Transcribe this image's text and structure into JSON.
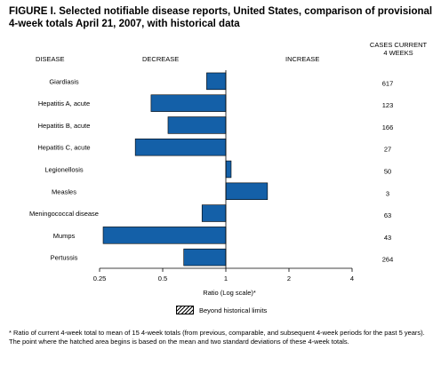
{
  "title": "FIGURE I. Selected notifiable disease reports, United States, comparison of provisional 4-week totals April 21, 2007, with historical data",
  "headers": {
    "disease": "DISEASE",
    "decrease": "DECREASE",
    "increase": "INCREASE",
    "cases_line1": "CASES CURRENT",
    "cases_line2": "4 WEEKS"
  },
  "legend_label": "Beyond historical limits",
  "footnote": "* Ratio of current 4-week total to mean of 15 4-week totals (from previous, comparable, and subsequent 4-week periods for the past 5 years). The point where the hatched area begins is based on the mean and two standard deviations of these 4-week totals.",
  "colors": {
    "bar": "#1460a8",
    "bar_edge": "#000000"
  },
  "chart_data": {
    "type": "bar",
    "orientation": "horizontal",
    "xscale": "log2",
    "xlim": [
      0.25,
      4
    ],
    "xlabel": "Ratio (Log scale)*",
    "xticks": [
      0.25,
      0.5,
      1,
      2,
      4
    ],
    "xtick_labels": [
      "0.25",
      "0.5",
      "1",
      "2",
      "4"
    ],
    "reference_line": 1,
    "categories": [
      "Giardiasis",
      "Hepatitis A, acute",
      "Hepatitis B, acute",
      "Hepatitis C, acute",
      "Legionellosis",
      "Measles",
      "Meningococcal disease",
      "Mumps",
      "Pertussis"
    ],
    "values": [
      0.81,
      0.44,
      0.53,
      0.37,
      1.06,
      1.58,
      0.77,
      0.26,
      0.63
    ],
    "cases_current_4_weeks": [
      "617",
      "123",
      "166",
      "27",
      "50",
      "3",
      "63",
      "43",
      "264"
    ]
  }
}
